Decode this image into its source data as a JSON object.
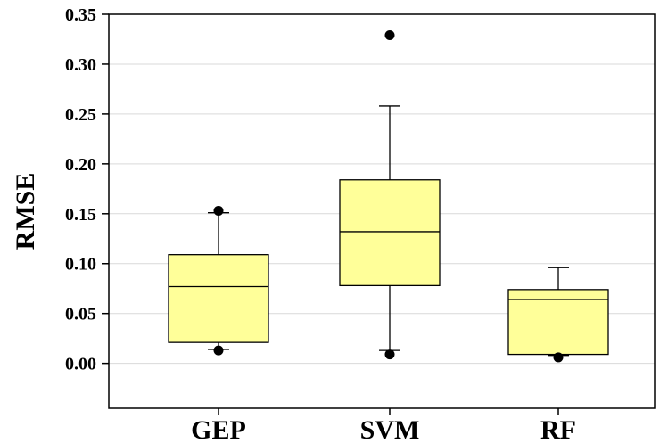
{
  "chart_data": {
    "type": "boxplot",
    "title": "",
    "xlabel": "",
    "ylabel": "RMSE",
    "ylim": [
      -0.045,
      0.35
    ],
    "yticks": [
      "0.00",
      "0.05",
      "0.10",
      "0.15",
      "0.20",
      "0.25",
      "0.30",
      "0.35"
    ],
    "grid": true,
    "box_color": "#ffff99",
    "categories": [
      "GEP",
      "SVM",
      "RF"
    ],
    "boxes": [
      {
        "category": "GEP",
        "whisker_low": 0.014,
        "q1": 0.021,
        "median": 0.077,
        "q3": 0.109,
        "whisker_high": 0.151,
        "outliers": [
          0.153,
          0.013
        ]
      },
      {
        "category": "SVM",
        "whisker_low": 0.013,
        "q1": 0.078,
        "median": 0.132,
        "q3": 0.184,
        "whisker_high": 0.258,
        "outliers": [
          0.329,
          0.009
        ]
      },
      {
        "category": "RF",
        "whisker_low": 0.008,
        "q1": 0.009,
        "median": 0.064,
        "q3": 0.074,
        "whisker_high": 0.096,
        "outliers": [
          0.006
        ]
      }
    ]
  }
}
